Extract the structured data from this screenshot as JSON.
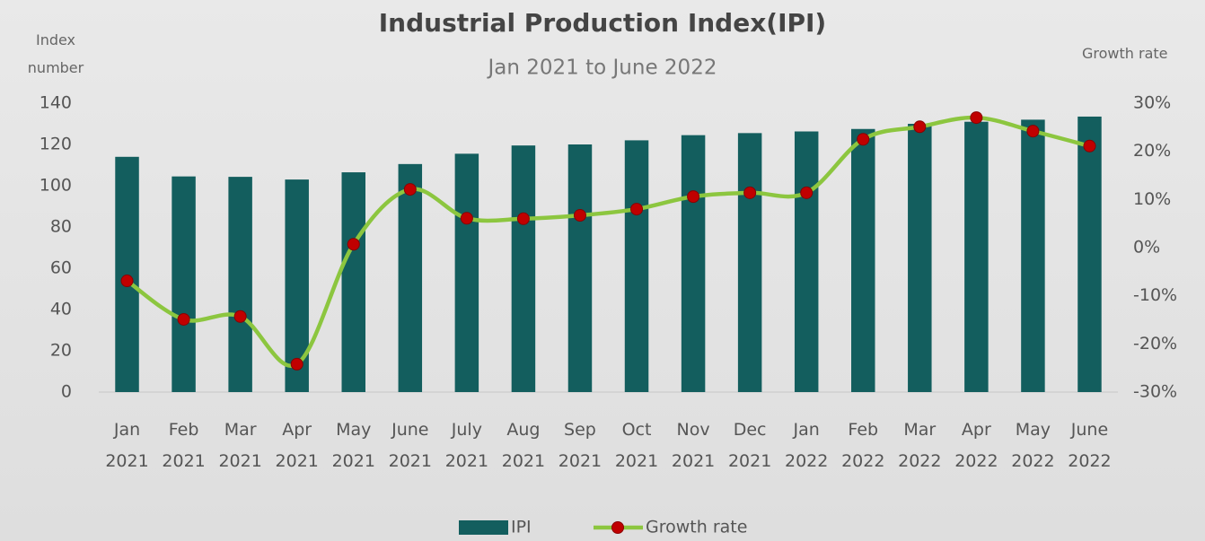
{
  "chart_data": {
    "type": "bar",
    "title": "Industrial Production Index(IPI)",
    "subtitle": "Jan 2021 to June 2022",
    "y_label": "Index number",
    "y2_label": "Growth rate",
    "categories": [
      "Jan 2021",
      "Feb 2021",
      "Mar 2021",
      "Apr 2021",
      "May 2021",
      "June 2021",
      "July 2021",
      "Aug 2021",
      "Sep 2021",
      "Oct 2021",
      "Nov 2021",
      "Dec 2021",
      "Jan 2022",
      "Feb 2022",
      "Mar 2022",
      "Apr 2022",
      "May 2022",
      "June 2022"
    ],
    "series": [
      {
        "name": "IPI",
        "type": "bar",
        "color": "#135e5e",
        "values": [
          114,
          104.5,
          104.3,
          103,
          106.5,
          110.5,
          115.5,
          119.5,
          120,
          122,
          124.5,
          125.5,
          126.3,
          127.5,
          130,
          131,
          132,
          133.5
        ]
      },
      {
        "name": "Growth rate",
        "type": "line",
        "axis": "y2",
        "color": "#8cc63f",
        "marker_color": "#c00000",
        "smooth": true,
        "values": [
          -6.9,
          -14.9,
          -14.3,
          -24.2,
          0.7,
          12.1,
          6.1,
          6.0,
          6.7,
          8.0,
          10.6,
          11.4,
          11.4,
          22.5,
          25.1,
          27.0,
          24.2,
          21.1
        ]
      }
    ],
    "ylim": [
      0,
      140
    ],
    "yticks": [
      0,
      20,
      40,
      60,
      80,
      100,
      120,
      140
    ],
    "y2lim": [
      -30,
      30
    ],
    "y2ticks": [
      {
        "value": -30,
        "label": "-30%"
      },
      {
        "value": -20,
        "label": "-20%"
      },
      {
        "value": -10,
        "label": "-10%"
      },
      {
        "value": 0,
        "label": "0%"
      },
      {
        "value": 10,
        "label": "10%"
      },
      {
        "value": 20,
        "label": "20%"
      },
      {
        "value": 30,
        "label": "30%"
      }
    ],
    "grid": false,
    "legend": "bottom"
  }
}
